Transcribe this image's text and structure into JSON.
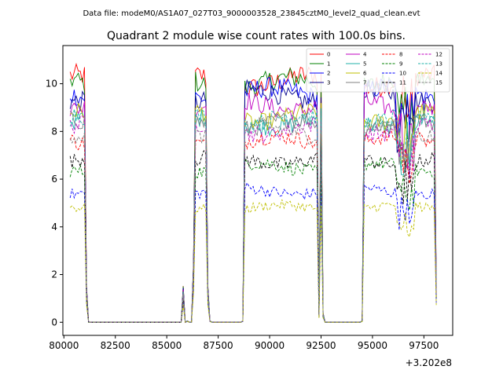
{
  "suptitle": "Data file: modeM0/AS1A07_027T03_9000003528_23845cztM0_level2_quad_clean.evt",
  "chart_data": {
    "type": "line",
    "title": "Quadrant 2 module wise count rates with 100.0s bins.",
    "xlabel": "",
    "ylabel": "",
    "offset_text": "+3.202e8",
    "xlim": [
      79950,
      98900
    ],
    "ylim": [
      -0.55,
      11.6
    ],
    "xticks": [
      80000,
      82500,
      85000,
      87500,
      90000,
      92500,
      95000,
      97500
    ],
    "xtick_labels": [
      "80000",
      "82500",
      "85000",
      "87500",
      "90000",
      "92500",
      "95000",
      "97500"
    ],
    "yticks": [
      0,
      2,
      4,
      6,
      8,
      10
    ],
    "ytick_labels": [
      "0",
      "2",
      "4",
      "6",
      "8",
      "10"
    ],
    "grid": false,
    "legend_position": "top-right",
    "time_bins": {
      "start": 80300,
      "step": 100,
      "good_intervals": [
        [
          80300,
          81000
        ],
        [
          86400,
          86900
        ],
        [
          88800,
          92300
        ],
        [
          92500,
          92500
        ],
        [
          94600,
          98000
        ]
      ],
      "edge_values": [
        [
          81100,
          1.2
        ],
        [
          82900,
          0
        ],
        [
          85800,
          1.2
        ],
        [
          86000,
          0.05
        ],
        [
          86300,
          2
        ],
        [
          87000,
          1.2
        ],
        [
          87100,
          0.05
        ],
        [
          88700,
          0.05
        ],
        [
          92400,
          0.3
        ],
        [
          92600,
          0.3
        ],
        [
          94500,
          0.05
        ],
        [
          98100,
          1.2
        ]
      ]
    },
    "series": [
      {
        "name": "0",
        "color": "#ff0000",
        "dash": "solid",
        "level": 10.1
      },
      {
        "name": "1",
        "color": "#008000",
        "dash": "solid",
        "level": 10.0
      },
      {
        "name": "2",
        "color": "#0000ff",
        "dash": "solid",
        "level": 9.6
      },
      {
        "name": "3",
        "color": "#00008b",
        "dash": "solid",
        "level": 9.5
      },
      {
        "name": "4",
        "color": "#c000c0",
        "dash": "solid",
        "level": 9.1
      },
      {
        "name": "5",
        "color": "#20b2aa",
        "dash": "solid",
        "level": 8.4
      },
      {
        "name": "6",
        "color": "#bfbf00",
        "dash": "solid",
        "level": 8.6
      },
      {
        "name": "7",
        "color": "#808080",
        "dash": "solid",
        "level": 8.3
      },
      {
        "name": "8",
        "color": "#ff0000",
        "dash": "dashed",
        "level": 7.6
      },
      {
        "name": "9",
        "color": "#008000",
        "dash": "dashed",
        "level": 6.5
      },
      {
        "name": "10",
        "color": "#0000ff",
        "dash": "dashed",
        "level": 5.5
      },
      {
        "name": "11",
        "color": "#000000",
        "dash": "dashed",
        "level": 6.8
      },
      {
        "name": "12",
        "color": "#c000c0",
        "dash": "dashed",
        "level": 8.1
      },
      {
        "name": "13",
        "color": "#20b2aa",
        "dash": "dashed",
        "level": 8.5
      },
      {
        "name": "14",
        "color": "#bfbf00",
        "dash": "dashed",
        "level": 4.8
      },
      {
        "name": "15",
        "color": "#808080",
        "dash": "dashed",
        "level": 8.0
      }
    ]
  }
}
